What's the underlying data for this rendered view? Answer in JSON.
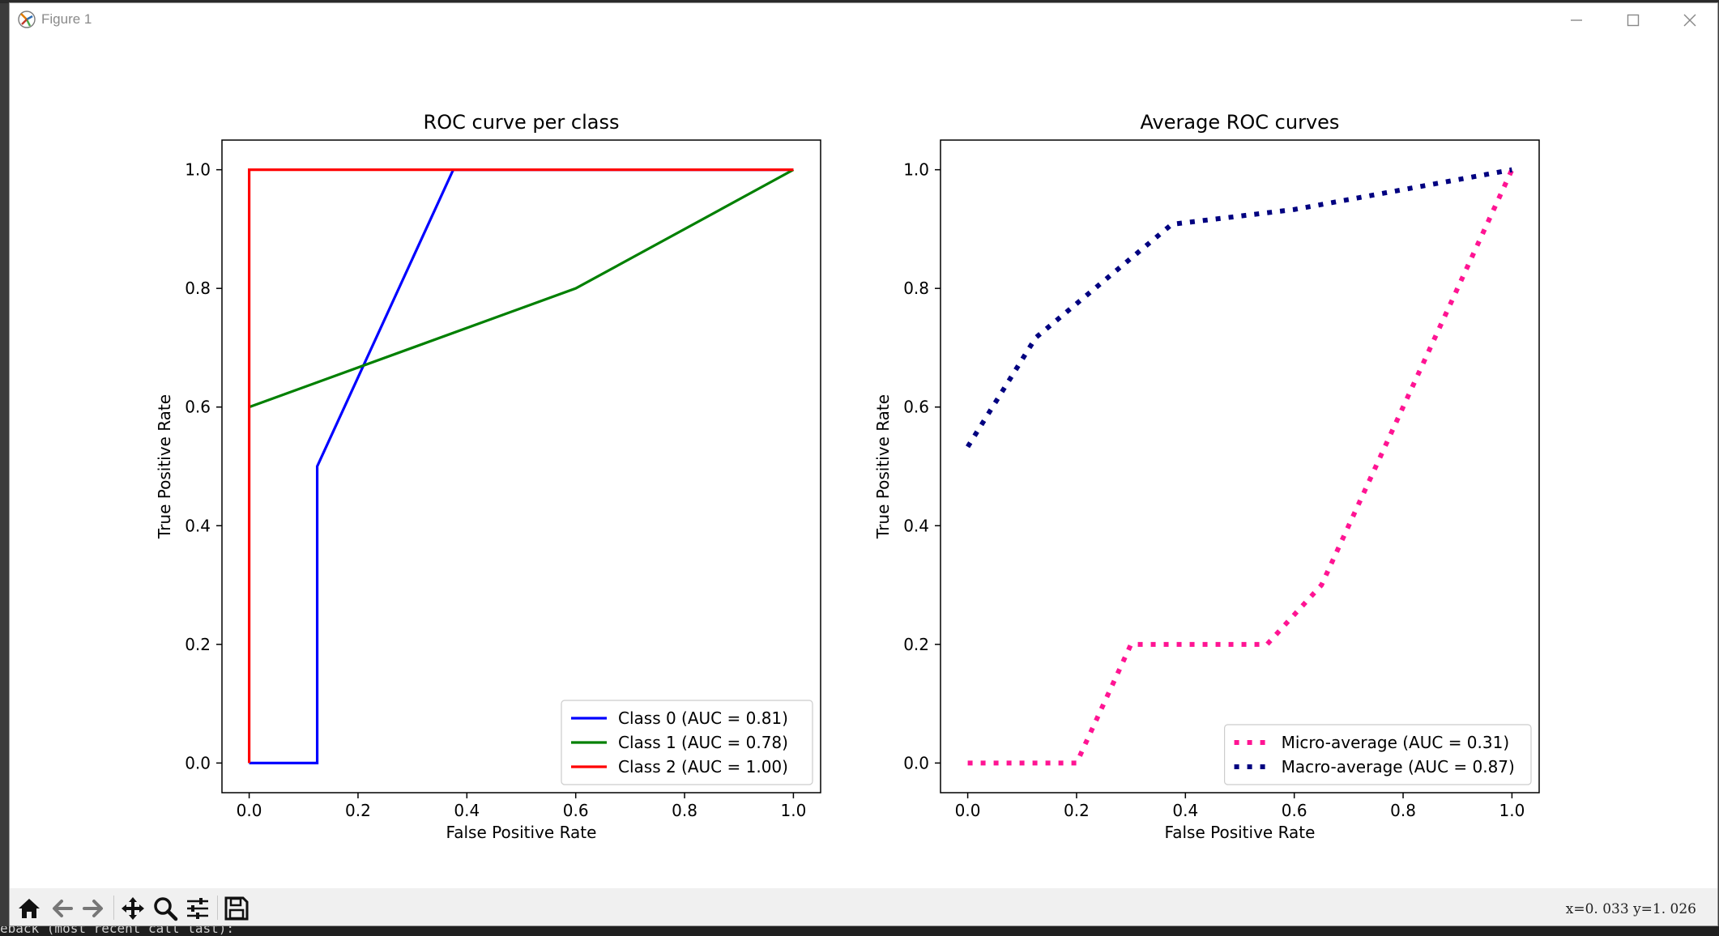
{
  "window": {
    "title": "Figure 1",
    "icons": {
      "app": "matplotlib-icon",
      "minimize": "minimize-icon",
      "maximize": "maximize-icon",
      "close": "close-icon"
    }
  },
  "toolbar": {
    "buttons": [
      "home-icon",
      "back-arrow-icon",
      "forward-arrow-icon",
      "pan-icon",
      "zoom-icon",
      "configure-subplots-icon",
      "save-icon"
    ],
    "coords": "x=0. 033  y=1. 026"
  },
  "terminal": {
    "text": "eback (most recent call last):"
  },
  "colors": {
    "class0": "#0000ff",
    "class1": "#008000",
    "class2": "#ff0000",
    "micro": "#ff1493",
    "macro": "#000080"
  },
  "chart_data": [
    {
      "type": "line",
      "title": "ROC curve per class",
      "xlabel": "False Positive Rate",
      "ylabel": "True Positive Rate",
      "xlim": [
        -0.05,
        1.05
      ],
      "ylim": [
        -0.05,
        1.05
      ],
      "xticks": [
        "0.0",
        "0.2",
        "0.4",
        "0.6",
        "0.8",
        "1.0"
      ],
      "yticks": [
        "0.0",
        "0.2",
        "0.4",
        "0.6",
        "0.8",
        "1.0"
      ],
      "grid": false,
      "legend_position": "lower right",
      "series": [
        {
          "name": "Class 0 (AUC = 0.81)",
          "color": "#0000ff",
          "style": "solid",
          "x": [
            0.0,
            0.125,
            0.125,
            0.375,
            1.0
          ],
          "y": [
            0.0,
            0.0,
            0.5,
            1.0,
            1.0
          ]
        },
        {
          "name": "Class 1 (AUC = 0.78)",
          "color": "#008000",
          "style": "solid",
          "x": [
            0.0,
            0.6,
            1.0
          ],
          "y": [
            0.6,
            0.8,
            1.0
          ]
        },
        {
          "name": "Class 2 (AUC = 1.00)",
          "color": "#ff0000",
          "style": "solid",
          "x": [
            0.0,
            0.0,
            1.0
          ],
          "y": [
            0.0,
            1.0,
            1.0
          ]
        }
      ]
    },
    {
      "type": "line",
      "title": "Average ROC curves",
      "xlabel": "False Positive Rate",
      "ylabel": "True Positive Rate",
      "xlim": [
        -0.05,
        1.05
      ],
      "ylim": [
        -0.05,
        1.05
      ],
      "xticks": [
        "0.0",
        "0.2",
        "0.4",
        "0.6",
        "0.8",
        "1.0"
      ],
      "yticks": [
        "0.0",
        "0.2",
        "0.4",
        "0.6",
        "0.8",
        "1.0"
      ],
      "grid": false,
      "legend_position": "lower right",
      "series": [
        {
          "name": "Micro-average (AUC = 0.31)",
          "color": "#ff1493",
          "style": "dotted",
          "x": [
            0.0,
            0.2,
            0.3,
            0.55,
            0.65,
            1.0
          ],
          "y": [
            0.0,
            0.0,
            0.2,
            0.2,
            0.3,
            1.0
          ]
        },
        {
          "name": "Macro-average (AUC = 0.87)",
          "color": "#000080",
          "style": "dotted",
          "x": [
            0.0,
            0.125,
            0.375,
            0.6,
            1.0
          ],
          "y": [
            0.533,
            0.717,
            0.908,
            0.933,
            1.0
          ]
        }
      ]
    }
  ]
}
